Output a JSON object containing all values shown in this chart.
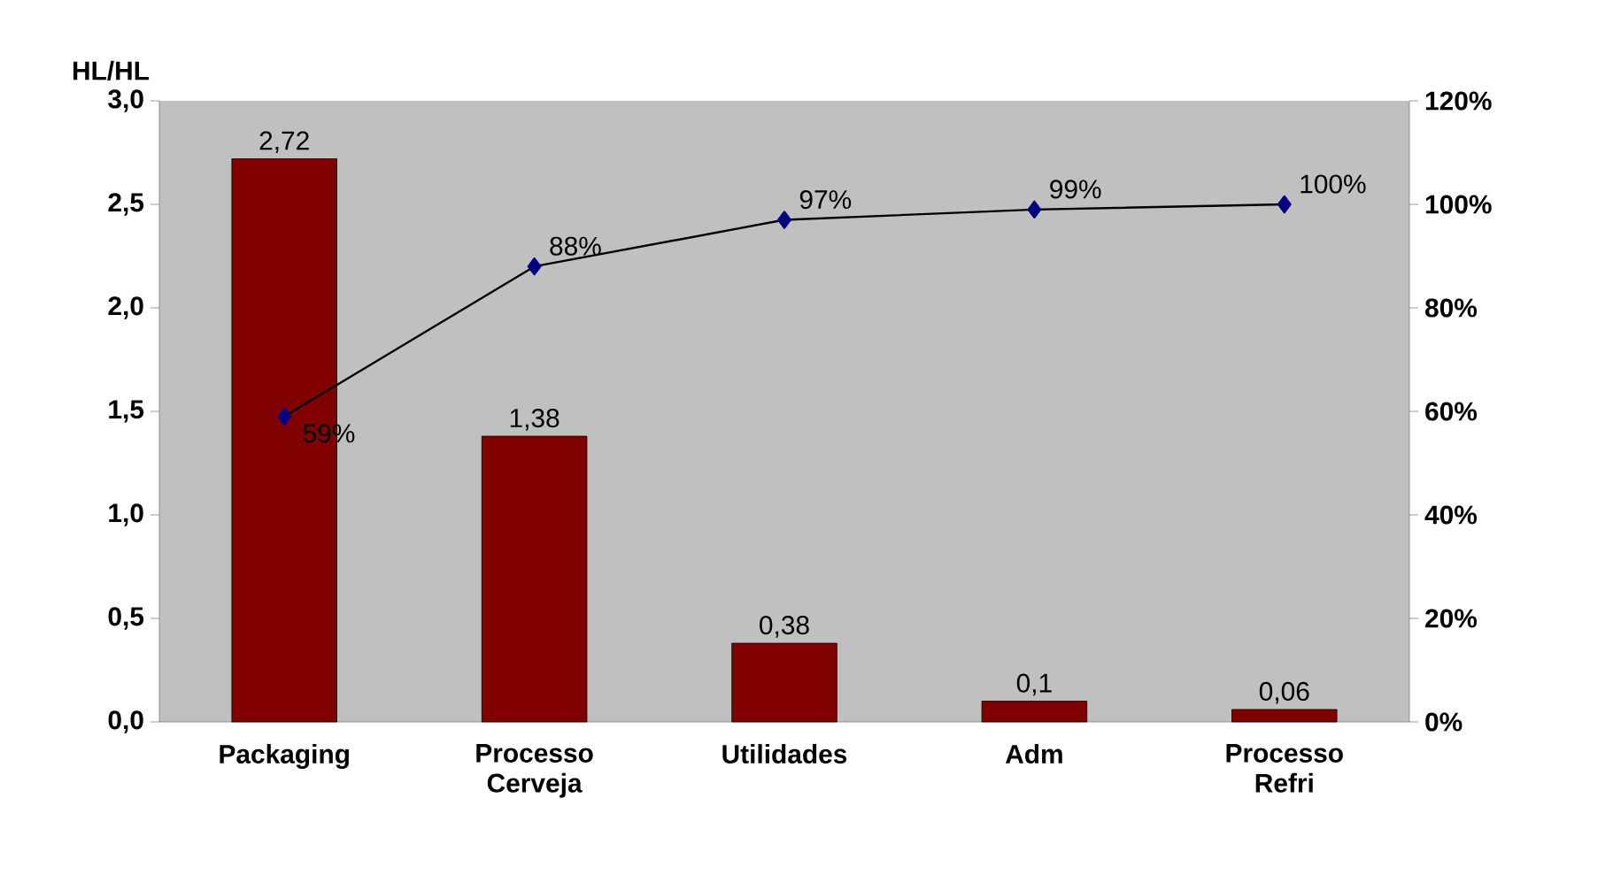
{
  "chart_data": {
    "type": "bar",
    "ylabel": "HL/HL",
    "categories": [
      "Packaging",
      "Processo Cerveja",
      "Utilidades",
      "Adm",
      "Processo Refri"
    ],
    "series": [
      {
        "color": "#800000",
        "values": [
          2.72,
          1.38,
          0.38,
          0.1,
          0.06
        ],
        "value_labels": [
          "2,72",
          "1,38",
          "0,38",
          "0,1",
          "0,06"
        ]
      },
      {
        "type": "line",
        "axis": "y2",
        "color": "#000080",
        "values": [
          59,
          88,
          97,
          99,
          100
        ],
        "value_labels": [
          "59%",
          "88%",
          "97%",
          "99%",
          "100%"
        ]
      }
    ],
    "marker": "diamond",
    "ylim": [
      0,
      3
    ],
    "yticks": [
      {
        "value": 0,
        "label": "0,0"
      },
      {
        "value": 0.5,
        "label": "0,5"
      },
      {
        "value": 1,
        "label": "1,0"
      },
      {
        "value": 1.5,
        "label": "1,5"
      },
      {
        "value": 2,
        "label": "2,0"
      },
      {
        "value": 2.5,
        "label": "2,5"
      },
      {
        "value": 3,
        "label": "3,0"
      }
    ],
    "y2lim": [
      0,
      120
    ],
    "y2ticks": [
      {
        "value": 0,
        "label": "0%"
      },
      {
        "value": 20,
        "label": "20%"
      },
      {
        "value": 40,
        "label": "40%"
      },
      {
        "value": 60,
        "label": "60%"
      },
      {
        "value": 80,
        "label": "80%"
      },
      {
        "value": 100,
        "label": "100%"
      },
      {
        "value": 120,
        "label": "120%"
      }
    ]
  }
}
